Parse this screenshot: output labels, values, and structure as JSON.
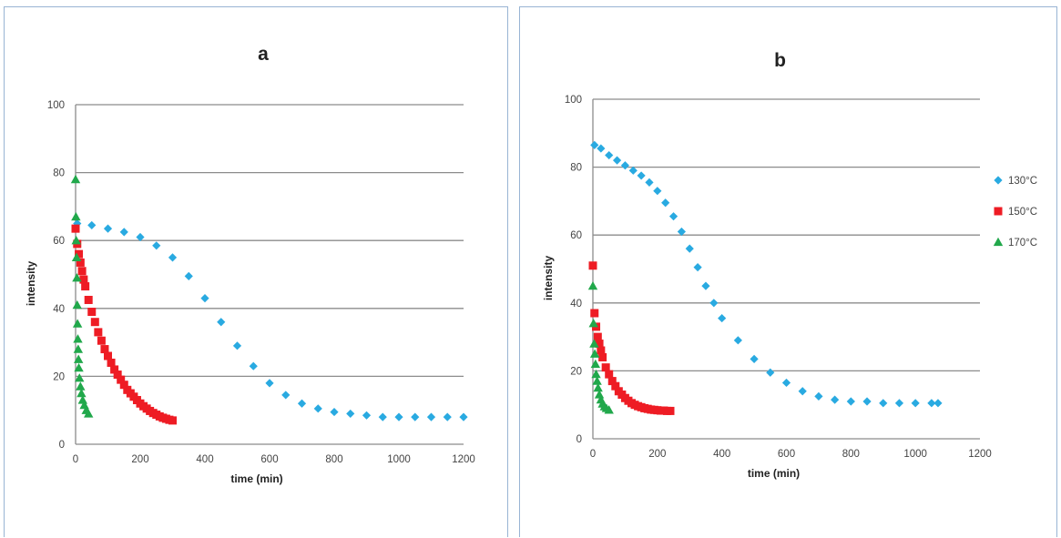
{
  "chart_data": [
    {
      "type": "scatter",
      "title": "a",
      "xlabel": "time (min)",
      "ylabel": "intensity",
      "xlim": [
        0,
        1200
      ],
      "ylim": [
        0,
        100
      ],
      "xticks": [
        0,
        200,
        400,
        600,
        800,
        1000,
        1200
      ],
      "yticks": [
        0,
        20,
        40,
        60,
        80,
        100
      ],
      "xtick_labels": [
        "0",
        "200",
        "400",
        "600",
        "800",
        "1000",
        "1200"
      ],
      "ytick_labels": [
        "0",
        "20",
        "40",
        "60",
        "80",
        "100"
      ],
      "grid": true,
      "legend": "none",
      "series": [
        {
          "color": "#29aae1",
          "marker": "diamond",
          "x": [
            5,
            50,
            100,
            150,
            200,
            250,
            300,
            350,
            400,
            450,
            500,
            550,
            600,
            650,
            700,
            750,
            800,
            850,
            900,
            950,
            1000,
            1050,
            1100,
            1150,
            1200
          ],
          "y": [
            65,
            64.5,
            63.5,
            62.5,
            61,
            58.5,
            55,
            49.5,
            43,
            36,
            29,
            23,
            18,
            14.5,
            12,
            10.5,
            9.5,
            9,
            8.5,
            8,
            8,
            8,
            8,
            8,
            8
          ]
        },
        {
          "color": "#ee1c24",
          "marker": "square",
          "x": [
            0,
            5,
            10,
            15,
            20,
            25,
            30,
            40,
            50,
            60,
            70,
            80,
            90,
            100,
            110,
            120,
            130,
            140,
            150,
            160,
            170,
            180,
            190,
            200,
            210,
            220,
            230,
            240,
            250,
            260,
            270,
            280,
            290,
            300
          ],
          "y": [
            63.5,
            59,
            56,
            53.5,
            51,
            48.5,
            46.5,
            42.5,
            39,
            36,
            33,
            30.5,
            28,
            26,
            24,
            22,
            20.5,
            19,
            17.5,
            16,
            15,
            14,
            13,
            12,
            11.2,
            10.5,
            9.8,
            9.2,
            8.7,
            8.2,
            7.8,
            7.5,
            7.2,
            7
          ]
        },
        {
          "color": "#21a84b",
          "marker": "triangle",
          "x": [
            0,
            1,
            2,
            3,
            4,
            5,
            6,
            7,
            8,
            9,
            10,
            12,
            15,
            18,
            22,
            27,
            33,
            40
          ],
          "y": [
            78,
            67,
            60,
            55,
            49,
            41,
            35.5,
            31,
            28,
            25,
            22.5,
            19.5,
            17,
            15,
            13,
            11.5,
            10,
            9
          ]
        }
      ]
    },
    {
      "type": "scatter",
      "title": "b",
      "xlabel": "time (min)",
      "ylabel": "intensity",
      "xlim": [
        0,
        1200
      ],
      "ylim": [
        0,
        100
      ],
      "xticks": [
        0,
        200,
        400,
        600,
        800,
        1000,
        1200
      ],
      "yticks": [
        0,
        20,
        40,
        60,
        80,
        100
      ],
      "xtick_labels": [
        "0",
        "200",
        "400",
        "600",
        "800",
        "1000",
        "1200"
      ],
      "ytick_labels": [
        "0",
        "20",
        "40",
        "60",
        "80",
        "100"
      ],
      "grid": true,
      "legend": "right",
      "series": [
        {
          "name": "130°C",
          "color": "#29aae1",
          "marker": "diamond",
          "x": [
            5,
            25,
            50,
            75,
            100,
            125,
            150,
            175,
            200,
            225,
            250,
            275,
            300,
            325,
            350,
            375,
            400,
            450,
            500,
            550,
            600,
            650,
            700,
            750,
            800,
            850,
            900,
            950,
            1000,
            1050,
            1070
          ],
          "y": [
            86.5,
            85.5,
            83.5,
            82,
            80.5,
            79,
            77.5,
            75.5,
            73,
            69.5,
            65.5,
            61,
            56,
            50.5,
            45,
            40,
            35.5,
            29,
            23.5,
            19.5,
            16.5,
            14,
            12.5,
            11.5,
            11,
            11,
            10.5,
            10.5,
            10.5,
            10.5,
            10.5
          ]
        },
        {
          "name": "150°C",
          "color": "#ee1c24",
          "marker": "square",
          "x": [
            0,
            5,
            10,
            15,
            20,
            25,
            30,
            40,
            50,
            60,
            70,
            80,
            90,
            100,
            110,
            120,
            130,
            140,
            150,
            160,
            170,
            180,
            190,
            200,
            210,
            220,
            230,
            240
          ],
          "y": [
            51,
            37,
            33,
            30,
            28,
            26,
            24,
            21,
            19,
            17,
            15.5,
            14,
            13,
            12,
            11.2,
            10.5,
            10,
            9.6,
            9.3,
            9,
            8.8,
            8.6,
            8.5,
            8.4,
            8.3,
            8.3,
            8.2,
            8.2
          ]
        },
        {
          "name": "170°C",
          "color": "#21a84b",
          "marker": "triangle",
          "x": [
            0,
            2,
            4,
            6,
            8,
            10,
            13,
            16,
            20,
            25,
            30,
            36,
            42,
            50
          ],
          "y": [
            45,
            34,
            28,
            25,
            22,
            19,
            17,
            15,
            13,
            11.5,
            10.3,
            9.5,
            9,
            8.5
          ]
        }
      ]
    }
  ]
}
